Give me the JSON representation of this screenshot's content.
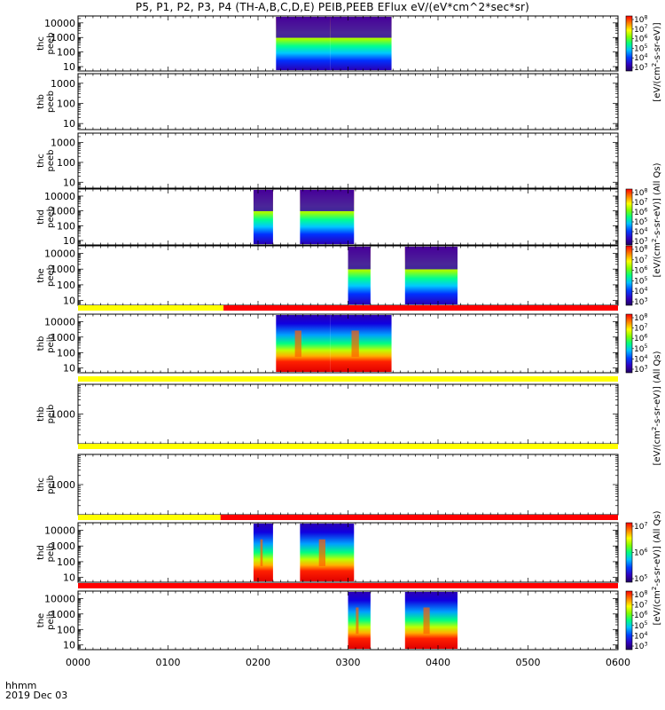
{
  "title": "P5, P1, P2, P3, P4 (TH-A,B,C,D,E) PEIB,PEEB EFlux eV/(eV*cm^2*sec*sr)",
  "time_axis_label": "hhmm",
  "date_label": "2019 Dec 03",
  "cbar_unit_long": "[eV/(cm^2-s-sr-eV)] (All Qs)",
  "cbar_unit_short": "[eV/(cm^2-s-sr-eV)]",
  "colors": {
    "flag_yellow": "#ffff00",
    "flag_red": "#ff0000",
    "spectrum_low": "#2a00b4",
    "spectrum_high": "#e00000"
  },
  "chart_data": {
    "type": "heatmap",
    "xaxis": {
      "unit": "hhmm",
      "range": [
        "0000",
        "0600"
      ],
      "ticks": [
        "0000",
        "0100",
        "0200",
        "0300",
        "0400",
        "0500",
        "0600"
      ]
    },
    "panels": [
      {
        "probe": "thc",
        "product": "peeb",
        "ylabel": "thc\npeeb",
        "ylim": [
          5,
          30000
        ],
        "yticks": [
          "10",
          "100",
          "1000",
          "10000"
        ],
        "colorbar": true,
        "cbar_ticks": [
          "10^3",
          "10^4",
          "10^5",
          "10^6",
          "10^7",
          "10^8"
        ],
        "intervals": [
          [
            "0212",
            "0248"
          ],
          [
            "0248",
            "0289"
          ]
        ]
      },
      {
        "probe": "thb",
        "product": "peeb",
        "ylabel": "thb\npeeb",
        "ylim": [
          5,
          3000
        ],
        "yticks": [
          "10",
          "100",
          "1000"
        ],
        "colorbar": false,
        "intervals": []
      },
      {
        "probe": "thc",
        "product": "peeb",
        "ylabel": "thc\npeeb",
        "ylim": [
          5,
          3000
        ],
        "yticks": [
          "10",
          "100",
          "1000"
        ],
        "colorbar": false,
        "intervals": []
      },
      {
        "probe": "thd",
        "product": "peeb",
        "ylabel": "thd\npeeb",
        "ylim": [
          5,
          30000
        ],
        "yticks": [
          "10",
          "100",
          "1000",
          "10000"
        ],
        "colorbar": true,
        "cbar_ticks": [
          "10^3",
          "10^4",
          "10^5",
          "10^6",
          "10^7",
          "10^8"
        ],
        "intervals": [
          [
            "0157",
            "0210"
          ],
          [
            "0228",
            "0264"
          ]
        ]
      },
      {
        "probe": "the",
        "product": "peeb",
        "ylabel": "the\npeeb",
        "ylim": [
          5,
          30000
        ],
        "yticks": [
          "10",
          "100",
          "1000",
          "10000"
        ],
        "colorbar": true,
        "cbar_ticks": [
          "10^3",
          "10^4",
          "10^5",
          "10^6",
          "10^7",
          "10^8"
        ],
        "intervals": [
          [
            "0300",
            "0315"
          ],
          [
            "0338",
            "0373"
          ]
        ]
      },
      {
        "probe": "thb",
        "product": "peib",
        "ylabel": "thb\npeib",
        "ylim": [
          5,
          30000
        ],
        "yticks": [
          "10",
          "100",
          "1000",
          "10000"
        ],
        "colorbar": true,
        "cbar_ticks": [
          "10^3",
          "10^4",
          "10^5",
          "10^6",
          "10^7",
          "10^8"
        ],
        "intervals": [
          [
            "0212",
            "0248"
          ],
          [
            "0248",
            "0289"
          ]
        ]
      },
      {
        "probe": "thb",
        "product": "peib",
        "ylabel": "thb\npeib",
        "ylim": [
          100,
          10000
        ],
        "yticks": [
          "1000"
        ],
        "colorbar": false,
        "intervals": []
      },
      {
        "probe": "thc",
        "product": "peib",
        "ylabel": "thc\npeib",
        "ylim": [
          100,
          10000
        ],
        "yticks": [
          "1000"
        ],
        "colorbar": false,
        "intervals": []
      },
      {
        "probe": "thd",
        "product": "peib",
        "ylabel": "thd\npeib",
        "ylim": [
          5,
          30000
        ],
        "yticks": [
          "10",
          "100",
          "1000",
          "10000"
        ],
        "colorbar": true,
        "cbar_ticks": [
          "10^5",
          "10^6",
          "10^7"
        ],
        "intervals": [
          [
            "0157",
            "0210"
          ],
          [
            "0228",
            "0264"
          ]
        ]
      },
      {
        "probe": "the",
        "product": "peib",
        "ylabel": "the\npeib",
        "ylim": [
          5,
          30000
        ],
        "yticks": [
          "10",
          "100",
          "1000",
          "10000"
        ],
        "colorbar": true,
        "cbar_ticks": [
          "10^3",
          "10^4",
          "10^5",
          "10^6",
          "10^7",
          "10^8"
        ],
        "intervals": [
          [
            "0300",
            "0315"
          ],
          [
            "0338",
            "0373"
          ]
        ]
      }
    ],
    "flag_bars": [
      {
        "after_panel": 4,
        "segments": [
          {
            "from": "0000",
            "to": "0137",
            "color": "yellow"
          },
          {
            "from": "0137",
            "to": "0600",
            "color": "red"
          }
        ]
      },
      {
        "after_panel": 5,
        "segments": [
          {
            "from": "0000",
            "to": "0600",
            "color": "yellow"
          }
        ]
      },
      {
        "after_panel": 6,
        "segments": [
          {
            "from": "0000",
            "to": "0600",
            "color": "yellow"
          }
        ]
      },
      {
        "after_panel": 7,
        "segments": [
          {
            "from": "0000",
            "to": "0135",
            "color": "yellow"
          },
          {
            "from": "0135",
            "to": "0600",
            "color": "red"
          }
        ]
      },
      {
        "after_panel": 8,
        "segments": [
          {
            "from": "0000",
            "to": "0600",
            "color": "red"
          }
        ]
      }
    ]
  }
}
